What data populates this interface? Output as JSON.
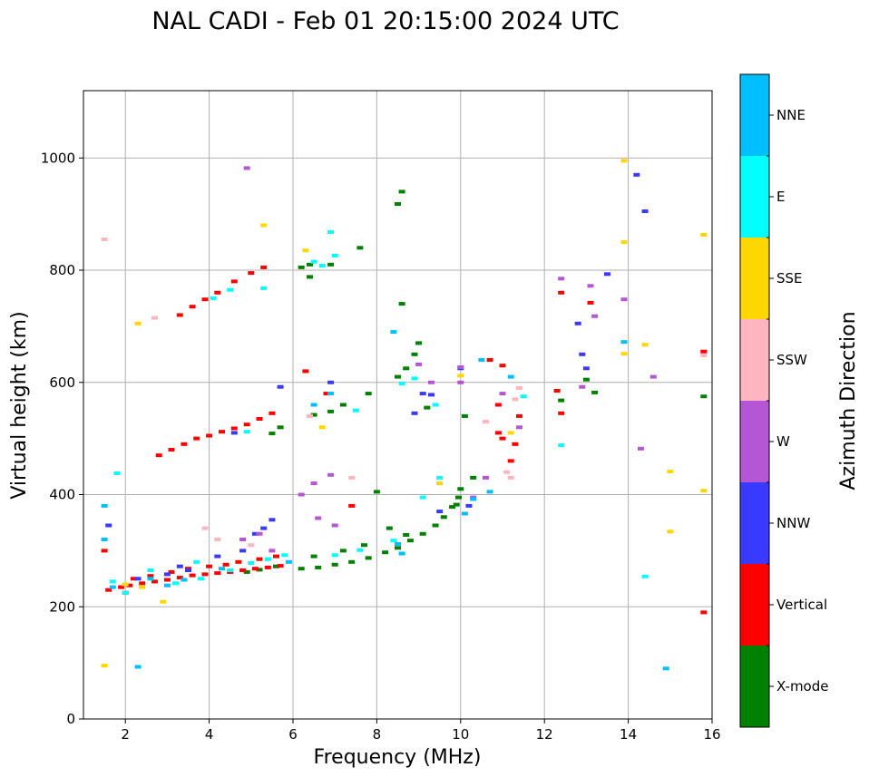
{
  "chart_data": {
    "type": "scatter",
    "title": "NAL CADI - Feb 01 20:15:00 2024 UTC",
    "xlabel": "Frequency (MHz)",
    "ylabel": "Virtual height (km)",
    "xlim": [
      1,
      16
    ],
    "ylim": [
      0,
      1120
    ],
    "xticks": [
      2,
      4,
      6,
      8,
      10,
      12,
      14,
      16
    ],
    "yticks": [
      0,
      200,
      400,
      600,
      800,
      1000
    ],
    "grid": true,
    "colorbar": {
      "label": "Azimuth Direction",
      "categories": [
        {
          "name": "X-mode",
          "color": "#008000"
        },
        {
          "name": "Vertical",
          "color": "#ff0000"
        },
        {
          "name": "NNW",
          "color": "#3a3aff"
        },
        {
          "name": "W",
          "color": "#b556d6"
        },
        {
          "name": "SSW",
          "color": "#ffb6c1"
        },
        {
          "name": "SSE",
          "color": "#ffd700"
        },
        {
          "name": "E",
          "color": "#00ffff"
        },
        {
          "name": "NNE",
          "color": "#00bfff"
        }
      ]
    },
    "series": [
      {
        "name": "X-mode",
        "points": [
          [
            6.2,
            268
          ],
          [
            6.6,
            270
          ],
          [
            7.0,
            275
          ],
          [
            7.4,
            280
          ],
          [
            7.8,
            287
          ],
          [
            8.2,
            297
          ],
          [
            8.5,
            305
          ],
          [
            8.8,
            318
          ],
          [
            9.1,
            330
          ],
          [
            9.4,
            345
          ],
          [
            9.6,
            360
          ],
          [
            9.8,
            378
          ],
          [
            9.95,
            395
          ],
          [
            10.0,
            410
          ],
          [
            9.9,
            382
          ],
          [
            7.2,
            300
          ],
          [
            6.5,
            290
          ],
          [
            5.2,
            266
          ],
          [
            5.6,
            272
          ],
          [
            4.9,
            262
          ],
          [
            8.0,
            405
          ],
          [
            9.2,
            555
          ],
          [
            9.0,
            670
          ],
          [
            8.6,
            740
          ],
          [
            8.6,
            940
          ],
          [
            8.5,
            918
          ],
          [
            8.5,
            610
          ],
          [
            8.7,
            625
          ],
          [
            8.9,
            650
          ],
          [
            6.5,
            542
          ],
          [
            6.9,
            548
          ],
          [
            7.2,
            560
          ],
          [
            7.8,
            580
          ],
          [
            6.4,
            810
          ],
          [
            6.9,
            810
          ],
          [
            7.6,
            840
          ],
          [
            10.3,
            430
          ],
          [
            10.1,
            540
          ],
          [
            12.4,
            568
          ],
          [
            13.0,
            605
          ],
          [
            13.2,
            582
          ],
          [
            15.8,
            575
          ],
          [
            8.3,
            340
          ],
          [
            8.7,
            328
          ],
          [
            7.7,
            310
          ],
          [
            5.5,
            509
          ],
          [
            5.7,
            520
          ],
          [
            6.2,
            805
          ],
          [
            6.4,
            788
          ]
        ]
      },
      {
        "name": "Vertical",
        "points": [
          [
            1.6,
            230
          ],
          [
            1.9,
            235
          ],
          [
            2.1,
            238
          ],
          [
            2.4,
            242
          ],
          [
            2.7,
            245
          ],
          [
            3.0,
            248
          ],
          [
            3.3,
            252
          ],
          [
            3.6,
            256
          ],
          [
            3.9,
            258
          ],
          [
            4.2,
            260
          ],
          [
            4.5,
            262
          ],
          [
            4.8,
            265
          ],
          [
            5.1,
            268
          ],
          [
            5.4,
            270
          ],
          [
            5.7,
            273
          ],
          [
            2.2,
            250
          ],
          [
            2.6,
            255
          ],
          [
            3.1,
            262
          ],
          [
            3.5,
            268
          ],
          [
            4.0,
            272
          ],
          [
            4.4,
            275
          ],
          [
            4.7,
            280
          ],
          [
            5.2,
            285
          ],
          [
            5.6,
            290
          ],
          [
            2.0,
            225
          ],
          [
            2.8,
            470
          ],
          [
            3.1,
            480
          ],
          [
            3.4,
            490
          ],
          [
            3.7,
            500
          ],
          [
            4.0,
            505
          ],
          [
            4.3,
            512
          ],
          [
            4.6,
            518
          ],
          [
            4.9,
            525
          ],
          [
            5.2,
            535
          ],
          [
            5.5,
            545
          ],
          [
            3.3,
            720
          ],
          [
            3.6,
            735
          ],
          [
            3.9,
            748
          ],
          [
            4.2,
            760
          ],
          [
            4.6,
            780
          ],
          [
            5.0,
            795
          ],
          [
            5.3,
            805
          ],
          [
            11.2,
            460
          ],
          [
            11.3,
            490
          ],
          [
            11.0,
            500
          ],
          [
            11.4,
            540
          ],
          [
            10.9,
            560
          ],
          [
            11.0,
            630
          ],
          [
            10.7,
            640
          ],
          [
            12.4,
            545
          ],
          [
            12.3,
            585
          ],
          [
            12.4,
            760
          ],
          [
            13.1,
            742
          ],
          [
            15.8,
            655
          ],
          [
            15.8,
            190
          ],
          [
            6.3,
            620
          ],
          [
            6.8,
            580
          ],
          [
            7.4,
            380
          ],
          [
            1.5,
            300
          ],
          [
            10.9,
            510
          ]
        ]
      },
      {
        "name": "NNW",
        "points": [
          [
            1.6,
            345
          ],
          [
            2.3,
            250
          ],
          [
            3.0,
            258
          ],
          [
            3.5,
            265
          ],
          [
            4.2,
            290
          ],
          [
            4.8,
            300
          ],
          [
            5.3,
            340
          ],
          [
            5.5,
            355
          ],
          [
            5.7,
            592
          ],
          [
            9.1,
            580
          ],
          [
            9.3,
            578
          ],
          [
            10.0,
            625
          ],
          [
            10.2,
            380
          ],
          [
            12.8,
            705
          ],
          [
            12.9,
            650
          ],
          [
            13.0,
            625
          ],
          [
            13.5,
            793
          ],
          [
            14.2,
            970
          ],
          [
            14.4,
            905
          ],
          [
            4.6,
            510
          ],
          [
            8.9,
            545
          ],
          [
            9.5,
            370
          ],
          [
            6.9,
            600
          ],
          [
            5.1,
            330
          ],
          [
            3.3,
            272
          ]
        ]
      },
      {
        "name": "W",
        "points": [
          [
            4.9,
            982
          ],
          [
            6.2,
            400
          ],
          [
            6.5,
            420
          ],
          [
            6.9,
            435
          ],
          [
            5.2,
            330
          ],
          [
            4.8,
            320
          ],
          [
            5.5,
            300
          ],
          [
            10.3,
            395
          ],
          [
            10.6,
            430
          ],
          [
            11.4,
            520
          ],
          [
            12.4,
            785
          ],
          [
            13.2,
            718
          ],
          [
            13.1,
            772
          ],
          [
            13.9,
            748
          ],
          [
            14.6,
            610
          ],
          [
            14.3,
            482
          ],
          [
            9.0,
            632
          ],
          [
            9.3,
            600
          ],
          [
            10.0,
            600
          ],
          [
            11.0,
            580
          ],
          [
            12.9,
            592
          ],
          [
            10.0,
            627
          ],
          [
            6.6,
            358
          ],
          [
            7.0,
            345
          ]
        ]
      },
      {
        "name": "SSW",
        "points": [
          [
            1.5,
            855
          ],
          [
            2.7,
            715
          ],
          [
            10.6,
            530
          ],
          [
            11.3,
            570
          ],
          [
            11.4,
            590
          ],
          [
            15.8,
            648
          ],
          [
            6.4,
            540
          ],
          [
            7.4,
            430
          ],
          [
            5.0,
            310
          ],
          [
            11.2,
            430
          ],
          [
            11.1,
            440
          ],
          [
            3.9,
            340
          ],
          [
            4.2,
            320
          ]
        ]
      },
      {
        "name": "SSE",
        "points": [
          [
            1.5,
            95
          ],
          [
            2.0,
            240
          ],
          [
            2.4,
            235
          ],
          [
            2.9,
            209
          ],
          [
            2.3,
            705
          ],
          [
            5.3,
            880
          ],
          [
            6.3,
            835
          ],
          [
            13.9,
            850
          ],
          [
            13.9,
            995
          ],
          [
            14.4,
            667
          ],
          [
            13.9,
            651
          ],
          [
            15.0,
            441
          ],
          [
            15.0,
            334
          ],
          [
            15.8,
            407
          ],
          [
            15.8,
            863
          ],
          [
            11.2,
            510
          ],
          [
            10.0,
            612
          ],
          [
            6.7,
            520
          ],
          [
            9.5,
            420
          ]
        ]
      },
      {
        "name": "E",
        "points": [
          [
            1.7,
            245
          ],
          [
            2.0,
            225
          ],
          [
            2.6,
            265
          ],
          [
            3.2,
            242
          ],
          [
            3.8,
            250
          ],
          [
            4.5,
            265
          ],
          [
            5.0,
            278
          ],
          [
            5.4,
            285
          ],
          [
            5.8,
            292
          ],
          [
            7.0,
            292
          ],
          [
            7.6,
            301
          ],
          [
            8.4,
            318
          ],
          [
            8.6,
            598
          ],
          [
            8.9,
            607
          ],
          [
            9.1,
            395
          ],
          [
            9.5,
            430
          ],
          [
            9.4,
            560
          ],
          [
            6.5,
            815
          ],
          [
            6.7,
            808
          ],
          [
            6.9,
            868
          ],
          [
            7.0,
            826
          ],
          [
            4.5,
            765
          ],
          [
            4.1,
            750
          ],
          [
            5.3,
            768
          ],
          [
            12.4,
            488
          ],
          [
            11.5,
            575
          ],
          [
            14.4,
            254
          ],
          [
            4.9,
            512
          ],
          [
            7.5,
            550
          ],
          [
            1.8,
            438
          ],
          [
            3.7,
            280
          ]
        ]
      },
      {
        "name": "NNE",
        "points": [
          [
            1.5,
            380
          ],
          [
            1.5,
            320
          ],
          [
            1.7,
            235
          ],
          [
            2.3,
            93
          ],
          [
            2.6,
            250
          ],
          [
            3.4,
            248
          ],
          [
            4.3,
            268
          ],
          [
            6.5,
            560
          ],
          [
            6.9,
            580
          ],
          [
            8.4,
            690
          ],
          [
            8.5,
            312
          ],
          [
            8.6,
            295
          ],
          [
            10.1,
            366
          ],
          [
            10.3,
            392
          ],
          [
            10.7,
            405
          ],
          [
            10.5,
            640
          ],
          [
            11.2,
            610
          ],
          [
            14.9,
            90
          ],
          [
            13.9,
            672
          ],
          [
            5.9,
            280
          ],
          [
            3.0,
            238
          ]
        ]
      }
    ]
  }
}
